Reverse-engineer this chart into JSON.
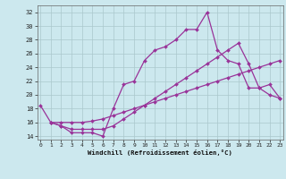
{
  "xlabel": "Windchill (Refroidissement éolien,°C)",
  "background_color": "#cce8ee",
  "grid_color": "#aac8cc",
  "line_color": "#993399",
  "x_ticks": [
    0,
    1,
    2,
    3,
    4,
    5,
    6,
    7,
    8,
    9,
    10,
    11,
    12,
    13,
    14,
    15,
    16,
    17,
    18,
    19,
    20,
    21,
    22,
    23
  ],
  "y_ticks": [
    14,
    16,
    18,
    20,
    22,
    24,
    26,
    28,
    30,
    32
  ],
  "ylim": [
    13.5,
    33
  ],
  "xlim": [
    -0.3,
    23.3
  ],
  "line1_x": [
    0,
    1,
    2,
    3,
    4,
    5,
    6,
    7,
    8,
    9,
    10,
    11,
    12,
    13,
    14,
    15,
    16,
    17,
    18,
    19,
    20,
    21,
    22,
    23
  ],
  "line1_y": [
    18.5,
    16.0,
    15.5,
    14.5,
    14.5,
    14.5,
    14.0,
    18.0,
    21.5,
    22.0,
    25.0,
    26.5,
    27.0,
    28.0,
    29.5,
    29.5,
    32.0,
    26.5,
    25.0,
    24.5,
    21.0,
    21.0,
    20.0,
    19.5
  ],
  "line2_x": [
    1,
    2,
    3,
    4,
    5,
    6,
    7,
    8,
    9,
    10,
    11,
    12,
    13,
    14,
    15,
    16,
    17,
    18,
    19,
    20,
    21,
    22,
    23
  ],
  "line2_y": [
    16.0,
    15.5,
    15.0,
    15.0,
    15.0,
    15.0,
    15.5,
    16.5,
    17.5,
    18.5,
    19.5,
    20.5,
    21.5,
    22.5,
    23.5,
    24.5,
    25.5,
    26.5,
    27.5,
    24.5,
    21.0,
    21.5,
    19.5
  ],
  "line3_x": [
    1,
    2,
    3,
    4,
    5,
    6,
    7,
    8,
    9,
    10,
    11,
    12,
    13,
    14,
    15,
    16,
    17,
    18,
    19,
    20,
    21,
    22,
    23
  ],
  "line3_y": [
    16.0,
    16.0,
    16.0,
    16.0,
    16.2,
    16.5,
    17.0,
    17.5,
    18.0,
    18.5,
    19.0,
    19.5,
    20.0,
    20.5,
    21.0,
    21.5,
    22.0,
    22.5,
    23.0,
    23.5,
    24.0,
    24.5,
    25.0
  ]
}
